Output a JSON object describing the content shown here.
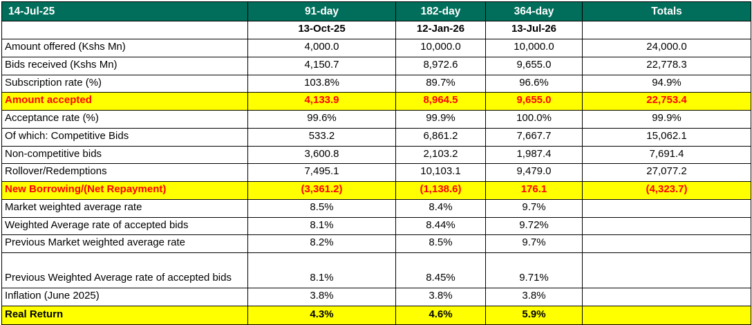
{
  "colors": {
    "header_green": "#006E5B",
    "header_text": "#FFFFFF",
    "highlight_yellow": "#FFFF00",
    "highlight_red_text": "#FF0000",
    "grid_line": "#000000"
  },
  "chart_data": {
    "type": "table",
    "title": "Treasury bills auction results table",
    "report_date": "14-Jul-25",
    "columns": [
      "91-day",
      "182-day",
      "364-day",
      "Totals"
    ],
    "value_dates": [
      "13-Oct-25",
      "12-Jan-26",
      "13-Jul-26",
      ""
    ],
    "rows": [
      {
        "label": "Amount offered (Kshs Mn)",
        "values": [
          "4,000.0",
          "10,000.0",
          "10,000.0",
          "24,000.0"
        ],
        "style": "default"
      },
      {
        "label": "Bids received (Kshs Mn)",
        "values": [
          "4,150.7",
          "8,972.6",
          "9,655.0",
          "22,778.3"
        ],
        "style": "default"
      },
      {
        "label": "Subscription rate (%)",
        "values": [
          "103.8%",
          "89.7%",
          "96.6%",
          "94.9%"
        ],
        "style": "default"
      },
      {
        "label": "Amount accepted",
        "values": [
          "4,133.9",
          "8,964.5",
          "9,655.0",
          "22,753.4"
        ],
        "style": "yellow-red"
      },
      {
        "label": "Acceptance rate (%)",
        "values": [
          "99.6%",
          "99.9%",
          "100.0%",
          "99.9%"
        ],
        "style": "default"
      },
      {
        "label": "Of which: Competitive Bids",
        "values": [
          "533.2",
          "6,861.2",
          "7,667.7",
          "15,062.1"
        ],
        "style": "default"
      },
      {
        "label": "Non-competitive bids",
        "values": [
          "3,600.8",
          "2,103.2",
          "1,987.4",
          "7,691.4"
        ],
        "style": "default"
      },
      {
        "label": "Rollover/Redemptions",
        "values": [
          "7,495.1",
          "10,103.1",
          "9,479.0",
          "27,077.2"
        ],
        "style": "default"
      },
      {
        "label": "New Borrowing/(Net Repayment)",
        "values": [
          "(3,361.2)",
          "(1,138.6)",
          "176.1",
          "(4,323.7)"
        ],
        "style": "yellow-red"
      },
      {
        "label": "Market weighted average rate",
        "values": [
          "8.5%",
          "8.4%",
          "9.7%",
          ""
        ],
        "style": "default"
      },
      {
        "label": "Weighted Average rate of accepted bids",
        "values": [
          "8.1%",
          "8.44%",
          "9.72%",
          ""
        ],
        "style": "default"
      },
      {
        "label": "Previous Market weighted average rate",
        "values": [
          "8.2%",
          "8.5%",
          "9.7%",
          ""
        ],
        "style": "default"
      },
      {
        "label": "Previous Weighted Average rate of accepted bids",
        "values": [
          "8.1%",
          "8.45%",
          "9.71%",
          ""
        ],
        "style": "default"
      },
      {
        "label": "Inflation (June 2025)",
        "values": [
          "3.8%",
          "3.8%",
          "3.8%",
          ""
        ],
        "style": "default"
      },
      {
        "label": "Real Return",
        "values": [
          "4.3%",
          "4.6%",
          "5.9%",
          ""
        ],
        "style": "yellow-black"
      }
    ]
  }
}
